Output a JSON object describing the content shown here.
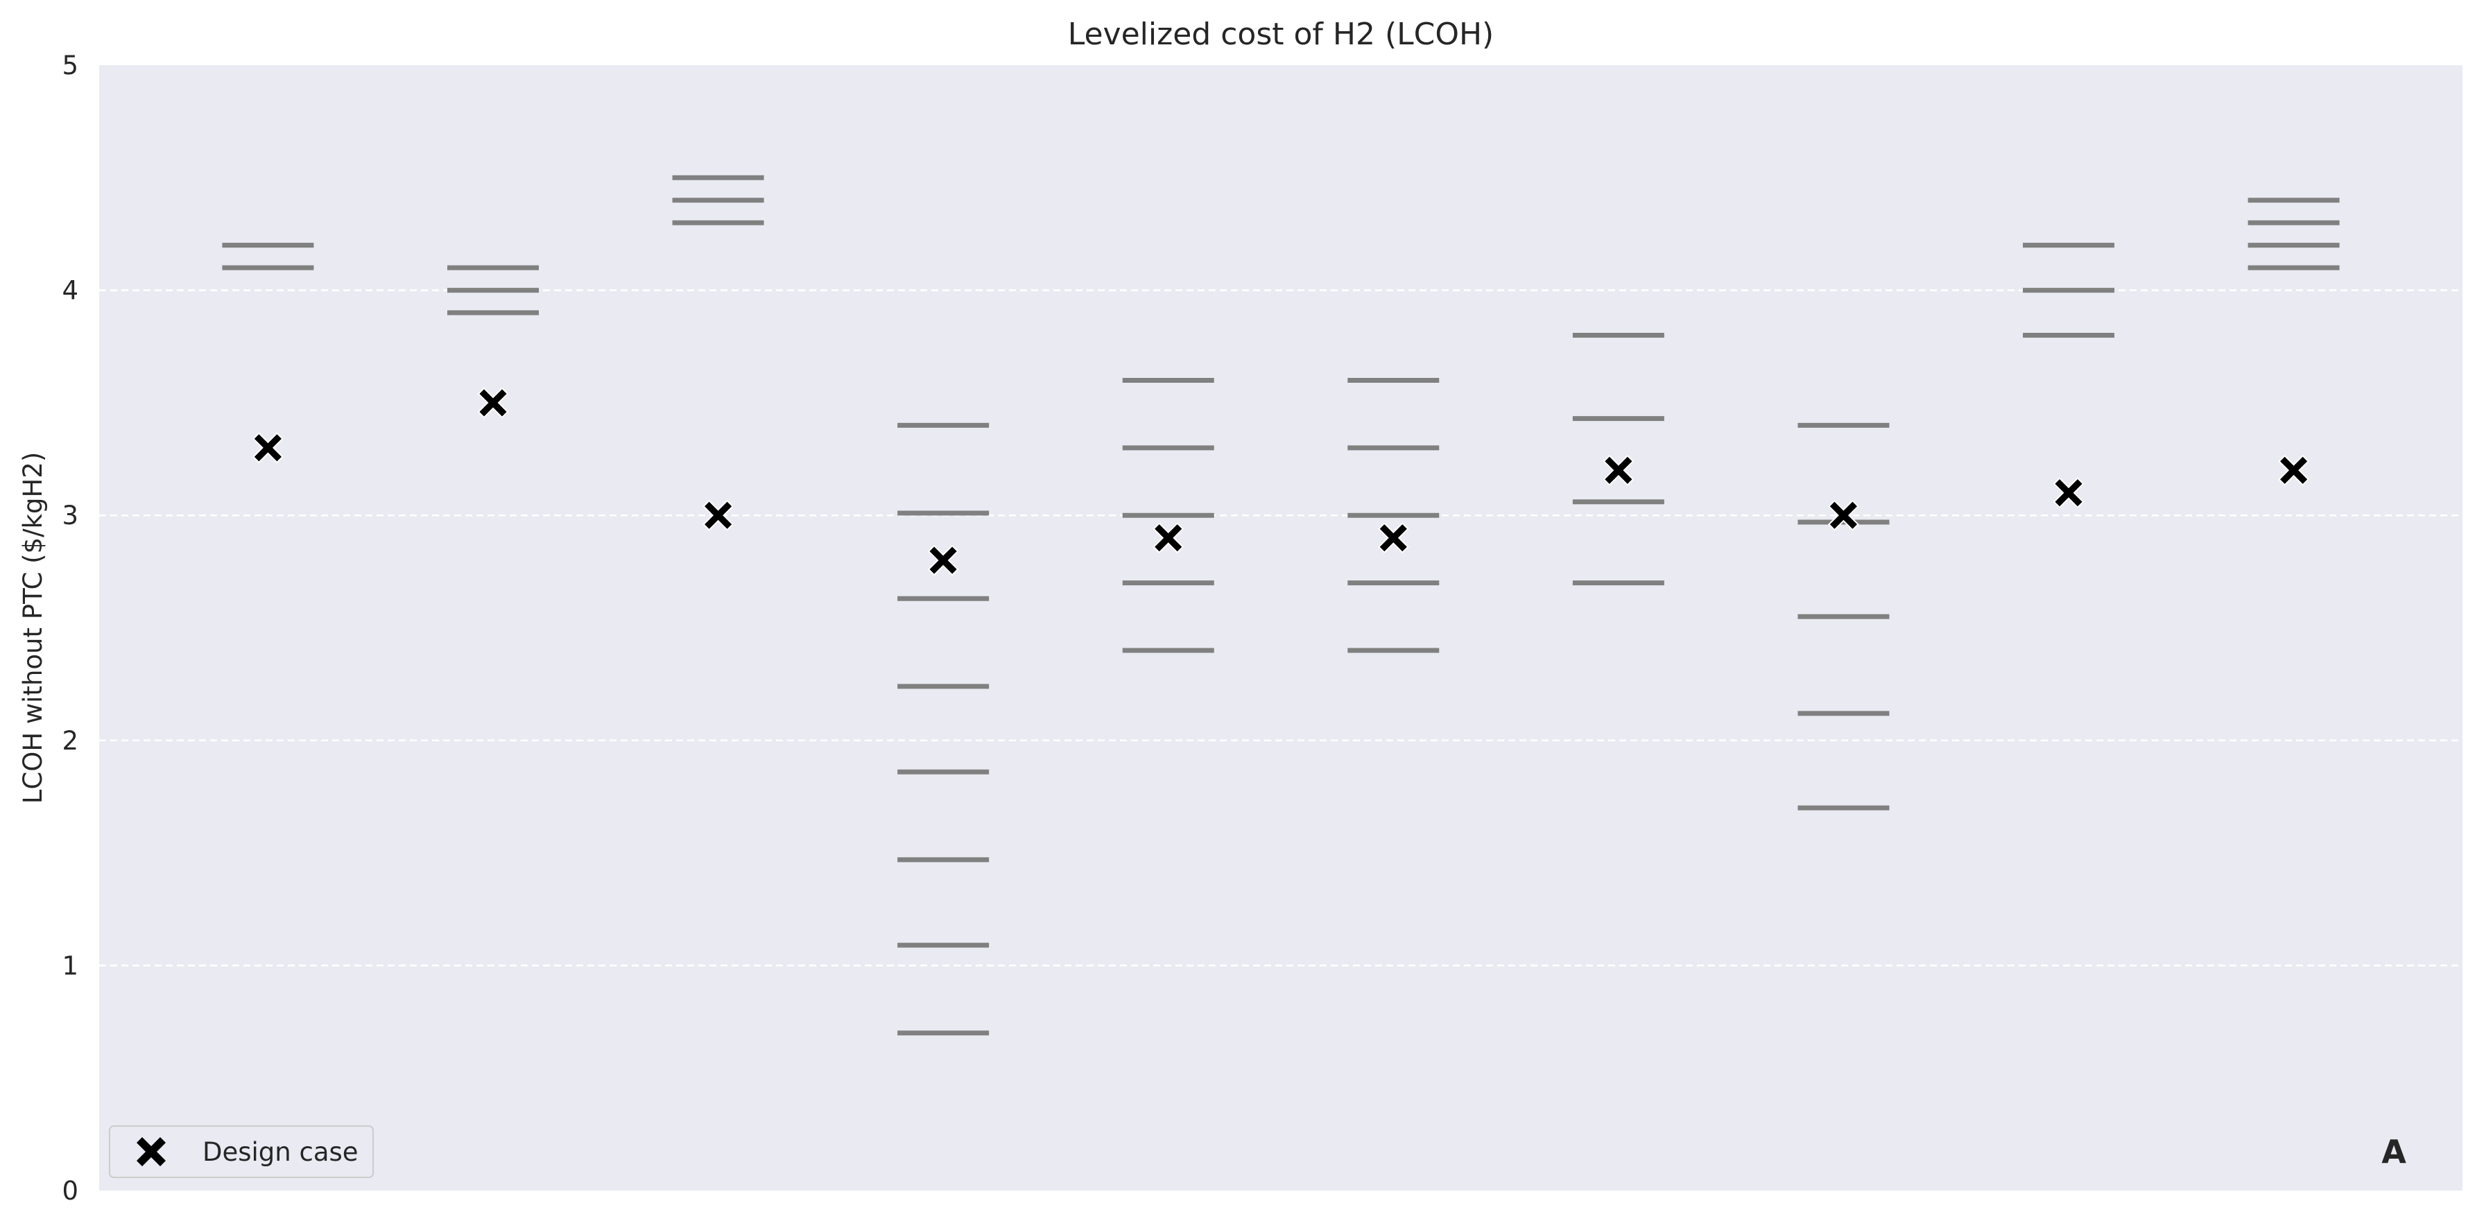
{
  "chart_data": {
    "type": "scatter",
    "title": "Levelized cost of H2 (LCOH)",
    "ylabel": "LCOH without PTC ($/kgH2)",
    "xlabel": "",
    "ylim": [
      0,
      5
    ],
    "yticks": [
      "0",
      "1",
      "2",
      "3",
      "4",
      "5"
    ],
    "grid": "horizontal dashed",
    "legend_position": "lower-left",
    "panel_label": "A",
    "colors": {
      "background": "#eaeaf2",
      "grid": "#ffffff",
      "range_marker": "#808080",
      "design_marker": "#000000"
    },
    "groups": [
      {
        "design_case": 3.3,
        "ranges": [
          4.2,
          4.1
        ]
      },
      {
        "design_case": 3.5,
        "ranges": [
          4.1,
          4.0,
          3.9
        ]
      },
      {
        "design_case": 3.0,
        "ranges": [
          4.5,
          4.4,
          4.3
        ]
      },
      {
        "design_case": 2.8,
        "ranges": [
          3.4,
          3.01,
          2.63,
          2.24,
          1.86,
          1.47,
          1.09,
          0.7
        ]
      },
      {
        "design_case": 2.9,
        "ranges": [
          3.6,
          3.3,
          3.0,
          2.7,
          2.4
        ]
      },
      {
        "design_case": 2.9,
        "ranges": [
          3.6,
          3.3,
          3.0,
          2.7,
          2.4
        ]
      },
      {
        "design_case": 3.2,
        "ranges": [
          3.8,
          3.43,
          3.06,
          2.7
        ]
      },
      {
        "design_case": 3.0,
        "ranges": [
          3.4,
          2.97,
          2.55,
          2.12,
          1.7
        ]
      },
      {
        "design_case": 3.1,
        "ranges": [
          4.2,
          4.0,
          3.8
        ]
      },
      {
        "design_case": 3.2,
        "ranges": [
          4.4,
          4.3,
          4.2,
          4.1
        ]
      }
    ],
    "series": [
      {
        "name": "Design case",
        "marker": "X"
      }
    ]
  }
}
